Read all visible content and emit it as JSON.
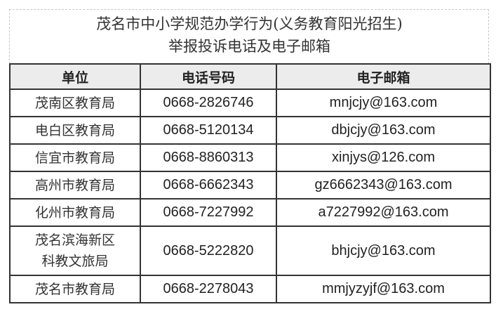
{
  "title": {
    "line1": "茂名市中小学规范办学行为(义务教育阳光招生)",
    "line2": "举报投诉电话及电子邮箱"
  },
  "table": {
    "headers": [
      "单位",
      "电话号码",
      "电子邮箱"
    ],
    "rows": [
      {
        "unit": "茂南区教育局",
        "unit2": "",
        "phone": "0668-2826746",
        "email": "mnjcjy@163.com"
      },
      {
        "unit": "电白区教育局",
        "unit2": "",
        "phone": "0668-5120134",
        "email": "dbjcjy@163.com"
      },
      {
        "unit": "信宜市教育局",
        "unit2": "",
        "phone": "0668-8860313",
        "email": "xinjys@126.com"
      },
      {
        "unit": "高州市教育局",
        "unit2": "",
        "phone": "0668-6662343",
        "email": "gz6662343@163.com"
      },
      {
        "unit": "化州市教育局",
        "unit2": "",
        "phone": "0668-7227992",
        "email": "a7227992@163.com"
      },
      {
        "unit": "茂名滨海新区",
        "unit2": "科教文旅局",
        "phone": "0668-5222820",
        "email": "bhjcjy@163.com"
      },
      {
        "unit": "茂名市教育局",
        "unit2": "",
        "phone": "0668-2278043",
        "email": "mmjyzyjf@163.com"
      }
    ]
  }
}
